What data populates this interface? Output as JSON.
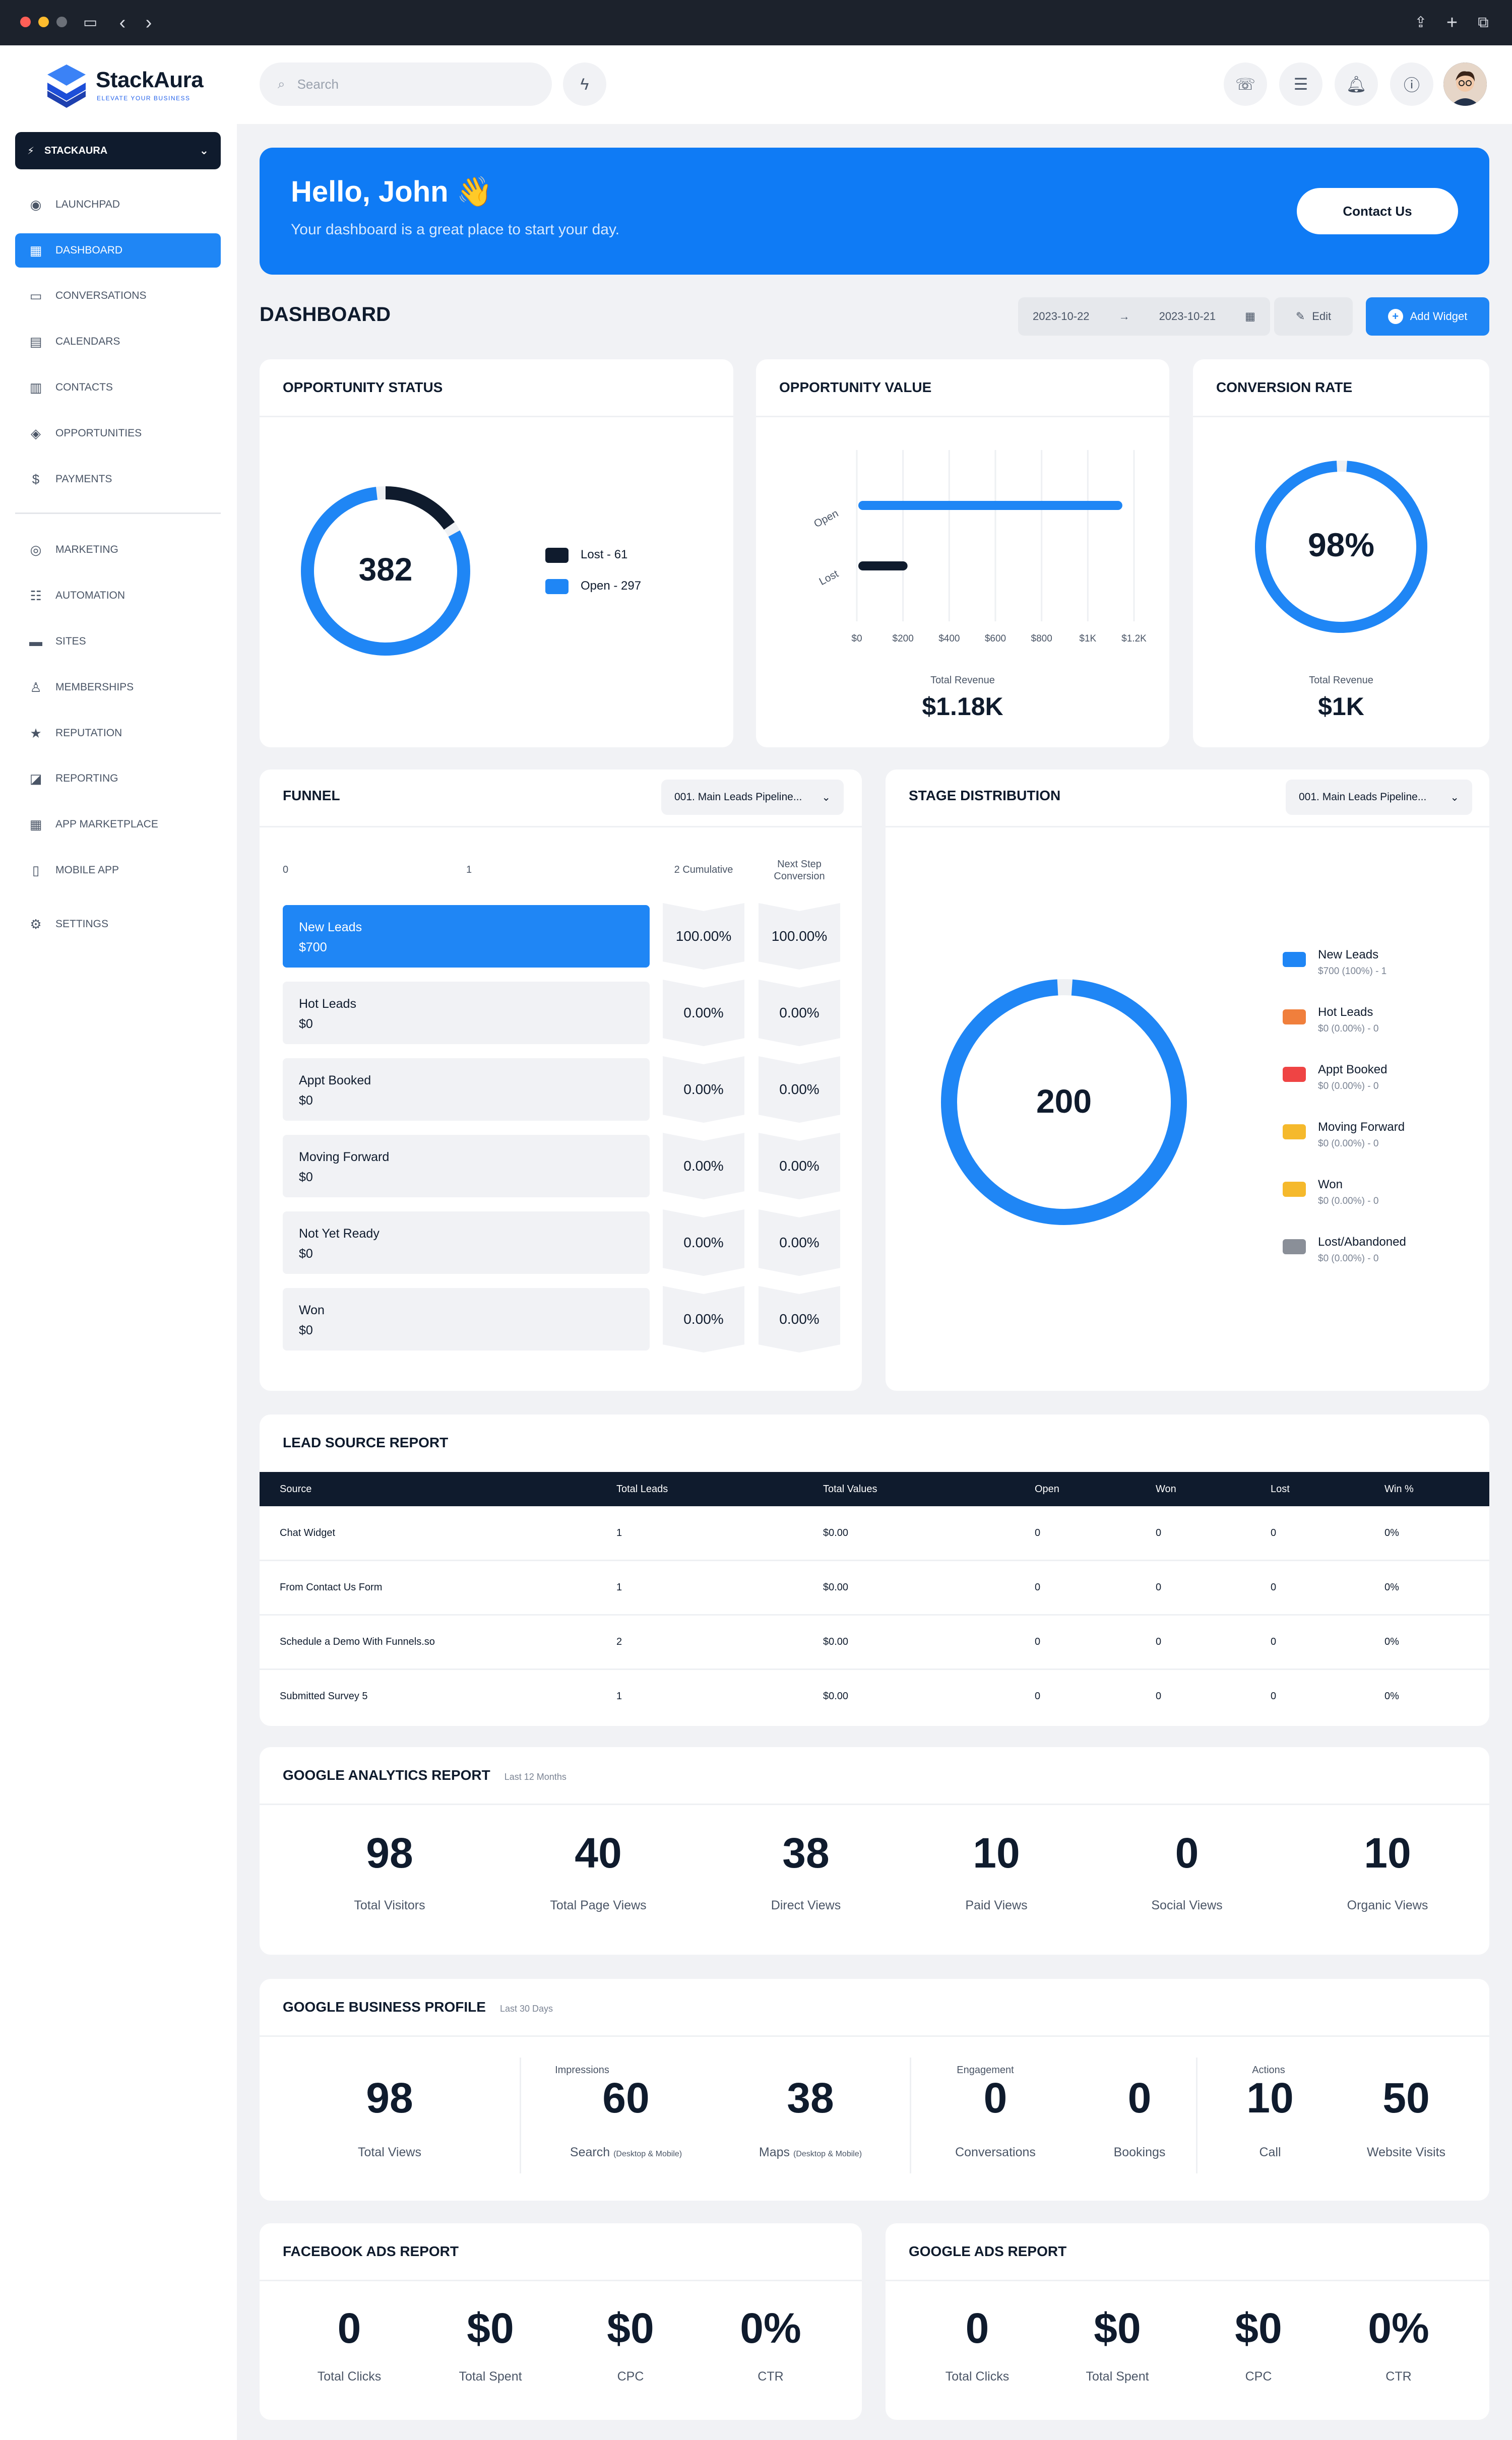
{
  "app": {
    "name": "StackAura",
    "tagline": "ELEVATE YOUR BUSINESS",
    "account": "STACKAURA"
  },
  "colors": {
    "accent": "#1f86f5",
    "navy": "#0f1b2d",
    "orange": "#f07f3c",
    "red": "#ef4444",
    "yellow": "#f5b92c",
    "gray": "#8a8f98"
  },
  "sidebar": {
    "items": [
      {
        "label": "LAUNCHPAD",
        "icon": "rocket-icon"
      },
      {
        "label": "DASHBOARD",
        "icon": "dashboard-icon"
      },
      {
        "label": "CONVERSATIONS",
        "icon": "chat-icon"
      },
      {
        "label": "CALENDARS",
        "icon": "calendar-icon"
      },
      {
        "label": "CONTACTS",
        "icon": "contacts-icon"
      },
      {
        "label": "OPPORTUNITIES",
        "icon": "opportunity-icon"
      },
      {
        "label": "PAYMENTS",
        "icon": "dollar-icon"
      },
      {
        "label": "MARKETING",
        "icon": "marketing-icon"
      },
      {
        "label": "AUTOMATION",
        "icon": "automation-icon"
      },
      {
        "label": "SITES",
        "icon": "monitor-icon"
      },
      {
        "label": "MEMBERSHIPS",
        "icon": "membership-icon"
      },
      {
        "label": "REPUTATION",
        "icon": "star-icon"
      },
      {
        "label": "REPORTING",
        "icon": "chart-icon"
      },
      {
        "label": "APP MARKETPLACE",
        "icon": "apps-icon"
      },
      {
        "label": "MOBILE APP",
        "icon": "mobile-icon"
      },
      {
        "label": "SETTINGS",
        "icon": "gear-icon"
      }
    ]
  },
  "search": {
    "placeholder": "Search"
  },
  "hero": {
    "greeting": "Hello, John 👋",
    "subtitle": "Your dashboard is a great place to start your day.",
    "cta": "Contact Us"
  },
  "dashboard": {
    "title": "DASHBOARD",
    "date_from": "2023-10-22",
    "date_to": "2023-10-21",
    "edit": "Edit",
    "add_widget": "Add Widget"
  },
  "opportunity_status": {
    "title": "OPPORTUNITY STATUS",
    "total": "382",
    "legend": [
      {
        "label": "Lost - 61",
        "value": 61
      },
      {
        "label": "Open - 297",
        "value": 297
      }
    ]
  },
  "opportunity_value": {
    "title": "OPPORTUNITY VALUE",
    "revenue_label": "Total Revenue",
    "revenue": "$1.18K"
  },
  "chart_data": {
    "type": "bar",
    "orientation": "horizontal",
    "categories": [
      "Open",
      "Lost"
    ],
    "values": [
      1130,
      200
    ],
    "xticks": [
      "$0",
      "$200",
      "$400",
      "$600",
      "$800",
      "$1K",
      "$1.2K"
    ],
    "xlim": [
      0,
      1200
    ]
  },
  "conversion_rate": {
    "title": "CONVERSION RATE",
    "value": "98%",
    "percent": 98,
    "revenue_label": "Total Revenue",
    "revenue": "$1K"
  },
  "funnel": {
    "title": "FUNNEL",
    "pipeline": "001. Main Leads Pipeline...",
    "col_0": "0",
    "col_1": "1",
    "col_cum": "2 Cumulative",
    "col_next": "Next Step Conversion",
    "stages": [
      {
        "name": "New Leads",
        "value": "$700",
        "cum": "100.00%",
        "next": "100.00%"
      },
      {
        "name": "Hot Leads",
        "value": "$0",
        "cum": "0.00%",
        "next": "0.00%"
      },
      {
        "name": "Appt Booked",
        "value": "$0",
        "cum": "0.00%",
        "next": "0.00%"
      },
      {
        "name": "Moving Forward",
        "value": "$0",
        "cum": "0.00%",
        "next": "0.00%"
      },
      {
        "name": "Not Yet Ready",
        "value": "$0",
        "cum": "0.00%",
        "next": "0.00%"
      },
      {
        "name": "Won",
        "value": "$0",
        "cum": "0.00%",
        "next": "0.00%"
      }
    ]
  },
  "stage_distribution": {
    "title": "STAGE DISTRIBUTION",
    "pipeline": "001. Main Leads Pipeline...",
    "total": "200",
    "legend": [
      {
        "name": "New Leads",
        "detail": "$700 (100%) - 1",
        "color": "#1f86f5"
      },
      {
        "name": "Hot Leads",
        "detail": "$0 (0.00%) - 0",
        "color": "#f07f3c"
      },
      {
        "name": "Appt Booked",
        "detail": "$0 (0.00%) - 0",
        "color": "#ef4444"
      },
      {
        "name": "Moving Forward",
        "detail": "$0 (0.00%) - 0",
        "color": "#f5b92c"
      },
      {
        "name": "Won",
        "detail": "$0 (0.00%) - 0",
        "color": "#f5b92c"
      },
      {
        "name": "Lost/Abandoned",
        "detail": "$0 (0.00%) - 0",
        "color": "#8a8f98"
      }
    ]
  },
  "lead_source": {
    "title": "LEAD SOURCE REPORT",
    "headers": [
      "Source",
      "Total Leads",
      "Total Values",
      "Open",
      "Won",
      "Lost",
      "Win %"
    ],
    "rows": [
      [
        "Chat Widget",
        "1",
        "$0.00",
        "0",
        "0",
        "0",
        "0%"
      ],
      [
        "From Contact Us Form",
        "1",
        "$0.00",
        "0",
        "0",
        "0",
        "0%"
      ],
      [
        "Schedule a Demo With Funnels.so",
        "2",
        "$0.00",
        "0",
        "0",
        "0",
        "0%"
      ],
      [
        "Submitted Survey 5",
        "1",
        "$0.00",
        "0",
        "0",
        "0",
        "0%"
      ]
    ]
  },
  "google_analytics": {
    "title": "GOOGLE ANALYTICS REPORT",
    "period": "Last 12 Months",
    "stats": [
      {
        "n": "98",
        "l": "Total Visitors"
      },
      {
        "n": "40",
        "l": "Total Page Views"
      },
      {
        "n": "38",
        "l": "Direct Views"
      },
      {
        "n": "10",
        "l": "Paid Views"
      },
      {
        "n": "0",
        "l": "Social Views"
      },
      {
        "n": "10",
        "l": "Organic Views"
      }
    ]
  },
  "google_business": {
    "title": "GOOGLE BUSINESS PROFILE",
    "period": "Last 30 Days",
    "groups": {
      "impressions": "Impressions",
      "engagement": "Engagement",
      "actions": "Actions"
    },
    "stats": [
      {
        "n": "98",
        "l": "Total Views",
        "s": ""
      },
      {
        "n": "60",
        "l": "Search",
        "s": "(Desktop & Mobile)"
      },
      {
        "n": "38",
        "l": "Maps",
        "s": "(Desktop & Mobile)"
      },
      {
        "n": "0",
        "l": "Conversations",
        "s": ""
      },
      {
        "n": "0",
        "l": "Bookings",
        "s": ""
      },
      {
        "n": "10",
        "l": "Call",
        "s": ""
      },
      {
        "n": "50",
        "l": "Website Visits",
        "s": ""
      }
    ]
  },
  "facebook_ads": {
    "title": "FACEBOOK ADS REPORT",
    "stats": [
      {
        "n": "0",
        "l": "Total Clicks"
      },
      {
        "n": "$0",
        "l": "Total Spent"
      },
      {
        "n": "$0",
        "l": "CPC"
      },
      {
        "n": "0%",
        "l": "CTR"
      }
    ]
  },
  "google_ads": {
    "title": "GOOGLE ADS REPORT",
    "stats": [
      {
        "n": "0",
        "l": "Total Clicks"
      },
      {
        "n": "$0",
        "l": "Total Spent"
      },
      {
        "n": "$0",
        "l": "CPC"
      },
      {
        "n": "0%",
        "l": "CTR"
      }
    ]
  }
}
